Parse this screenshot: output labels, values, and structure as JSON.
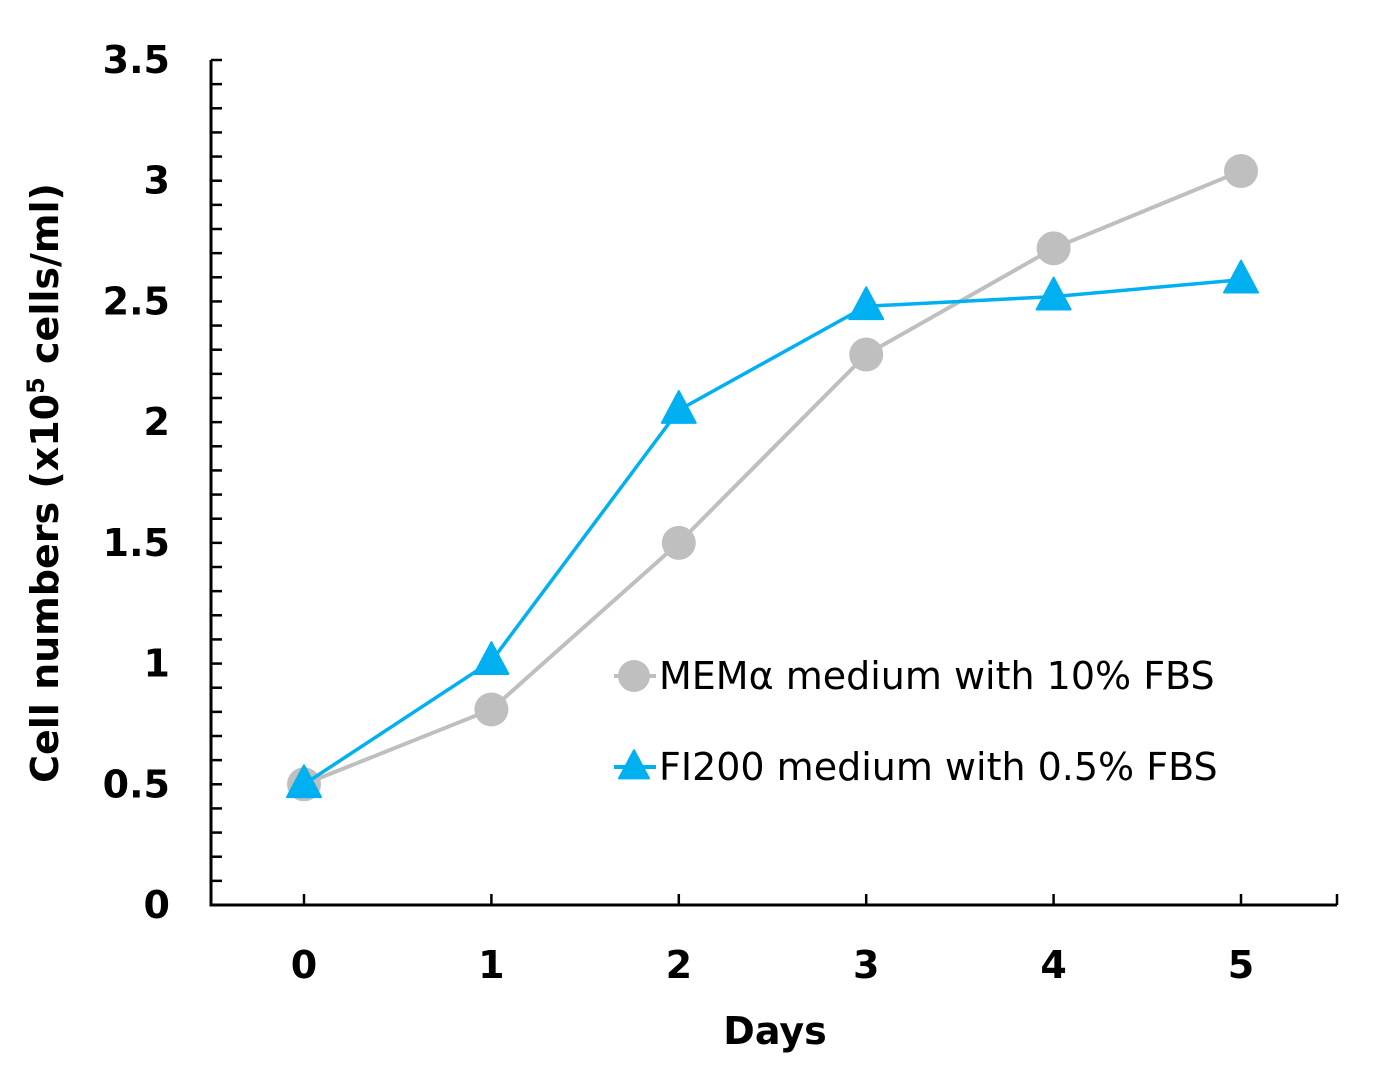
{
  "chart_data": {
    "type": "line",
    "title": "",
    "xlabel": "Days",
    "ylabel_main": "Cell numbers (x10",
    "ylabel_sup": "5",
    "ylabel_tail": " cells/ml)",
    "ylabel": "Cell numbers (x10^5 cells/ml)",
    "x": [
      0,
      1,
      2,
      3,
      4,
      5
    ],
    "x_tick_labels": [
      "0",
      "1",
      "2",
      "3",
      "4",
      "5"
    ],
    "xlim": [
      -0.5,
      5.5
    ],
    "ylim": [
      0,
      3.5
    ],
    "y_ticks": [
      0,
      0.5,
      1,
      1.5,
      2,
      2.5,
      3,
      3.5
    ],
    "y_tick_labels": [
      "0",
      "0.5",
      "1",
      "1.5",
      "2",
      "2.5",
      "3",
      "3.5"
    ],
    "y_minor_step": 0.1,
    "grid": false,
    "legend_position": "bottom-right",
    "series": [
      {
        "name": "MEMα medium with 10% FBS",
        "marker": "circle",
        "color": "#bfbfbf",
        "values": [
          0.5,
          0.81,
          1.5,
          2.28,
          2.72,
          3.04
        ],
        "errors": [
          0.0,
          0.04,
          0.05,
          0.0,
          0.0,
          0.0
        ]
      },
      {
        "name": "FI200 medium with 0.5% FBS",
        "marker": "triangle",
        "color": "#00b0f0",
        "values": [
          0.5,
          1.01,
          2.05,
          2.48,
          2.52,
          2.59
        ],
        "errors": [
          0.0,
          0.0,
          0.0,
          0.0,
          0.03,
          0.03
        ]
      }
    ]
  }
}
